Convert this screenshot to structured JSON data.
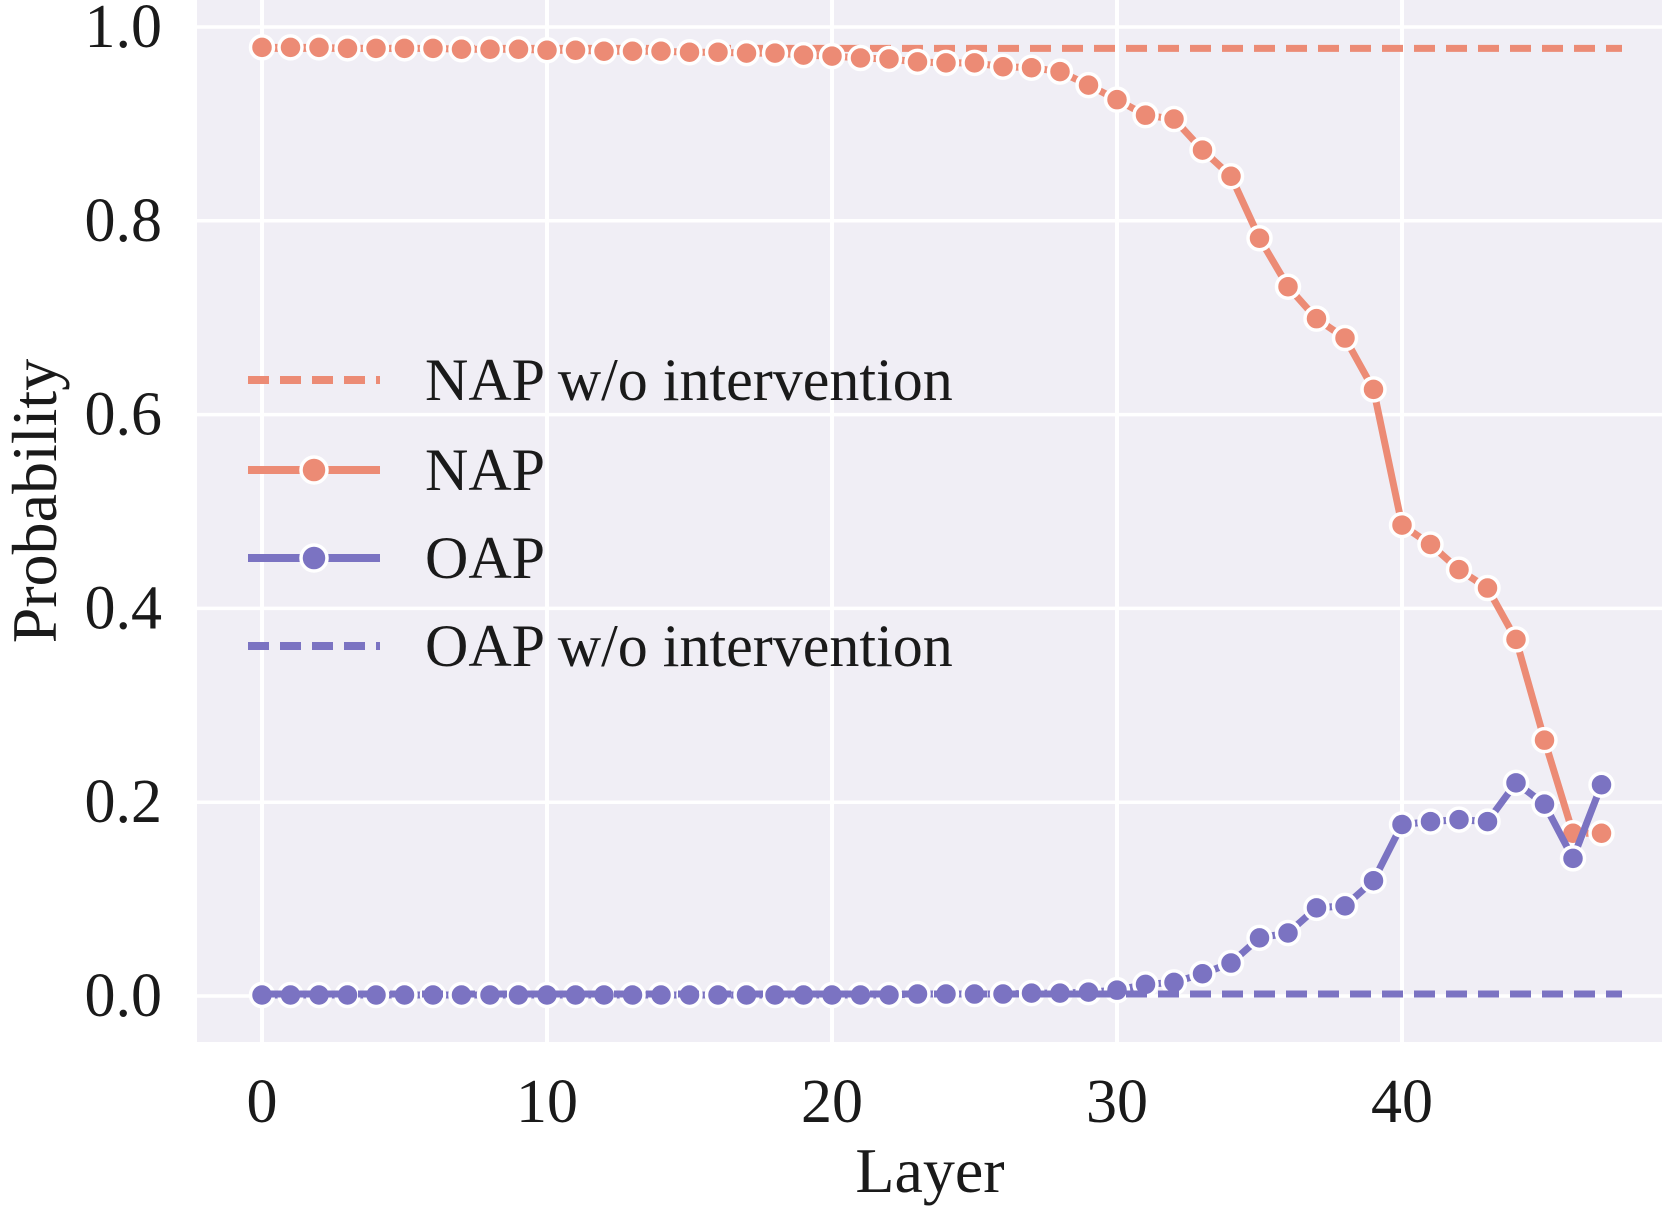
{
  "chart_data": {
    "type": "line",
    "title": "",
    "xlabel": "Layer",
    "ylabel": "Probability",
    "x": [
      0,
      1,
      2,
      3,
      4,
      5,
      6,
      7,
      8,
      9,
      10,
      11,
      12,
      13,
      14,
      15,
      16,
      17,
      18,
      19,
      20,
      21,
      22,
      23,
      24,
      25,
      26,
      27,
      28,
      29,
      30,
      31,
      32,
      33,
      34,
      35,
      36,
      37,
      38,
      39,
      40,
      41,
      42,
      43,
      44,
      45,
      46,
      47
    ],
    "series": [
      {
        "name": "NAP w/o intervention",
        "color": "#ec8b75",
        "line_style": "dashed",
        "marker": false,
        "constant_value": 0.978
      },
      {
        "name": "NAP",
        "color": "#ec8b75",
        "line_style": "solid",
        "marker": true,
        "values": [
          0.979,
          0.979,
          0.979,
          0.978,
          0.978,
          0.978,
          0.978,
          0.977,
          0.977,
          0.977,
          0.976,
          0.976,
          0.975,
          0.975,
          0.975,
          0.974,
          0.974,
          0.973,
          0.973,
          0.971,
          0.97,
          0.968,
          0.967,
          0.964,
          0.963,
          0.963,
          0.959,
          0.958,
          0.954,
          0.94,
          0.925,
          0.909,
          0.905,
          0.873,
          0.846,
          0.782,
          0.732,
          0.699,
          0.679,
          0.626,
          0.486,
          0.466,
          0.44,
          0.421,
          0.368,
          0.264,
          0.168,
          0.168
        ]
      },
      {
        "name": "OAP",
        "color": "#7b73c2",
        "line_style": "solid",
        "marker": true,
        "values": [
          0.001,
          0.001,
          0.001,
          0.001,
          0.001,
          0.001,
          0.001,
          0.001,
          0.001,
          0.001,
          0.001,
          0.001,
          0.001,
          0.001,
          0.001,
          0.001,
          0.001,
          0.001,
          0.001,
          0.001,
          0.001,
          0.001,
          0.001,
          0.002,
          0.002,
          0.002,
          0.002,
          0.003,
          0.003,
          0.004,
          0.006,
          0.012,
          0.014,
          0.023,
          0.034,
          0.06,
          0.065,
          0.091,
          0.093,
          0.119,
          0.177,
          0.18,
          0.182,
          0.18,
          0.22,
          0.198,
          0.142,
          0.218
        ]
      },
      {
        "name": "OAP w/o intervention",
        "color": "#7b73c2",
        "line_style": "dashed",
        "marker": false,
        "constant_value": 0.002
      }
    ],
    "xticks": {
      "values": [
        0,
        10,
        20,
        30,
        40
      ],
      "labels": [
        "0",
        "10",
        "20",
        "30",
        "40"
      ]
    },
    "yticks": {
      "values": [
        0.0,
        0.2,
        0.4,
        0.6,
        0.8,
        1.0
      ],
      "labels": [
        "0.0",
        "0.2",
        "0.4",
        "0.6",
        "0.8",
        "1.0"
      ]
    },
    "xlim": [
      -2.3,
      49.4
    ],
    "ylim": [
      -0.047,
      1.028
    ],
    "grid": true,
    "legend_position": "center-left",
    "legend_order": [
      "NAP w/o intervention",
      "NAP",
      "OAP",
      "OAP w/o intervention"
    ],
    "colors": {
      "background": "#f0eef5",
      "grid": "#ffffff",
      "text": "#1a1a1a"
    }
  }
}
